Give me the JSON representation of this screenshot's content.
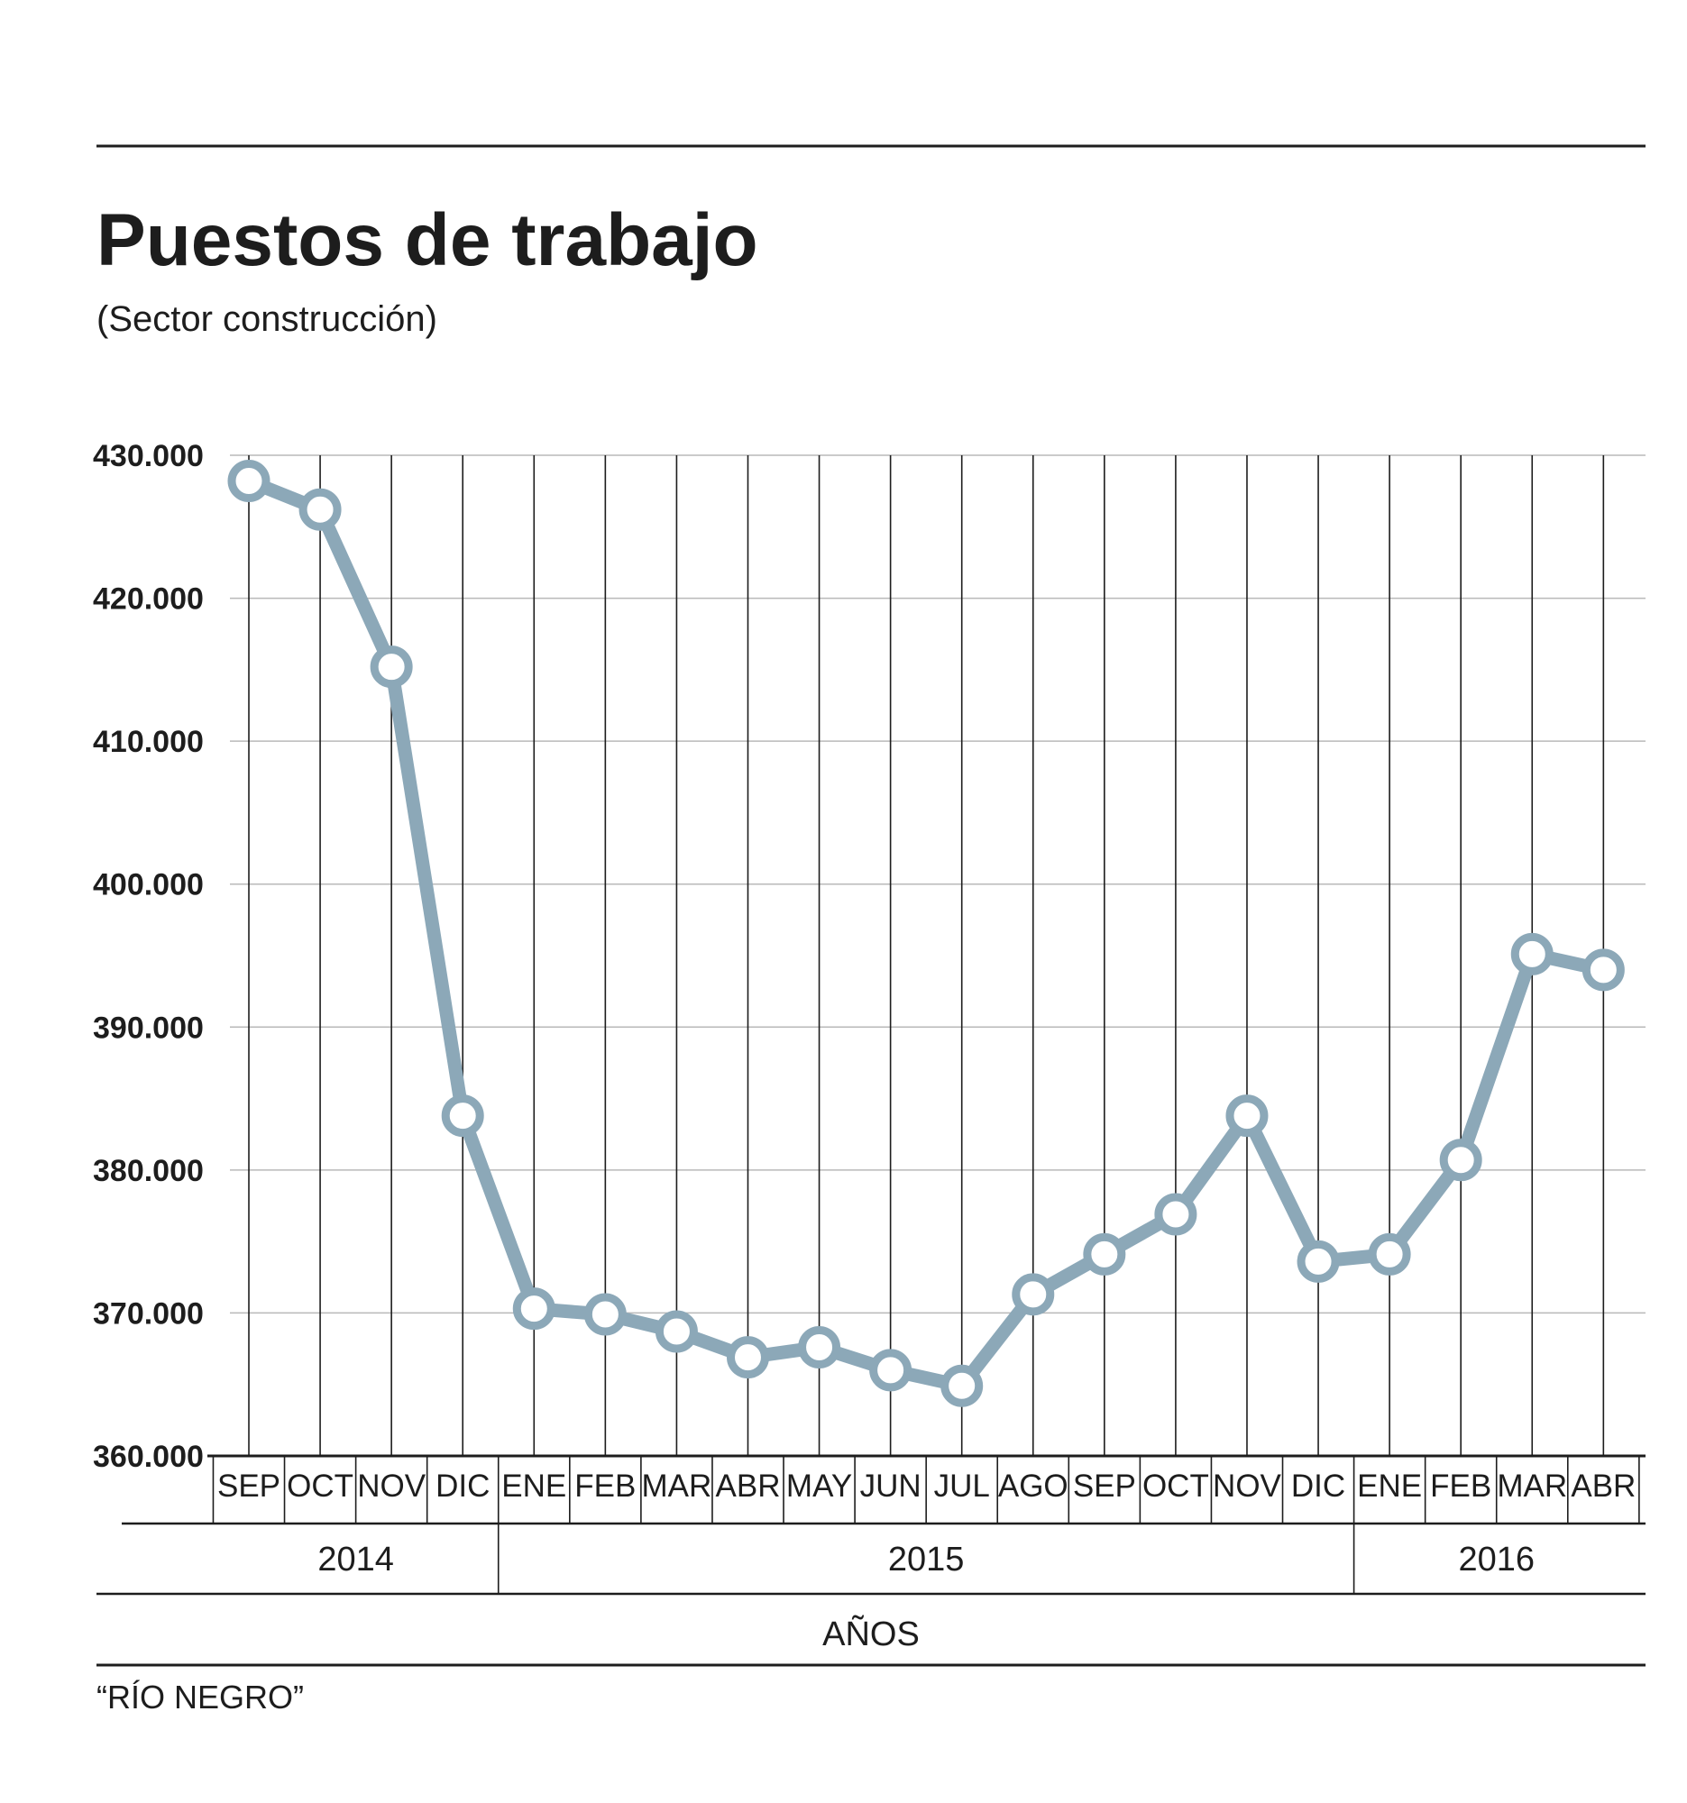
{
  "chart_data": {
    "type": "line",
    "title": "Puestos de trabajo",
    "subtitle": "(Sector construcción)",
    "categories": [
      "SEP",
      "OCT",
      "NOV",
      "DIC",
      "ENE",
      "FEB",
      "MAR",
      "ABR",
      "MAY",
      "JUN",
      "JUL",
      "AGO",
      "SEP",
      "OCT",
      "NOV",
      "DIC",
      "ENE",
      "FEB",
      "MAR",
      "ABR"
    ],
    "series": [
      {
        "name": "Puestos de trabajo",
        "values": [
          428200,
          426200,
          415200,
          383800,
          370300,
          369900,
          368700,
          366900,
          367600,
          366000,
          364900,
          371300,
          374100,
          376900,
          383800,
          373600,
          374100,
          380700,
          395100,
          394000
        ]
      }
    ],
    "yticks": [
      430000,
      420000,
      410000,
      400000,
      390000,
      380000,
      370000,
      360000
    ],
    "ytick_labels": [
      "430.000",
      "420.000",
      "410.000",
      "400.000",
      "390.000",
      "380.000",
      "370.000",
      "360.000"
    ],
    "ylim": [
      360000,
      430000
    ],
    "years": [
      {
        "label": "2014",
        "start": 0,
        "end": 3
      },
      {
        "label": "2015",
        "start": 4,
        "end": 15
      },
      {
        "label": "2016",
        "start": 16,
        "end": 19
      }
    ],
    "xlabel": "AÑOS",
    "ylabel": "",
    "grid": true,
    "line_color": "#8ca8b8",
    "source": "“RÍO NEGRO”"
  }
}
